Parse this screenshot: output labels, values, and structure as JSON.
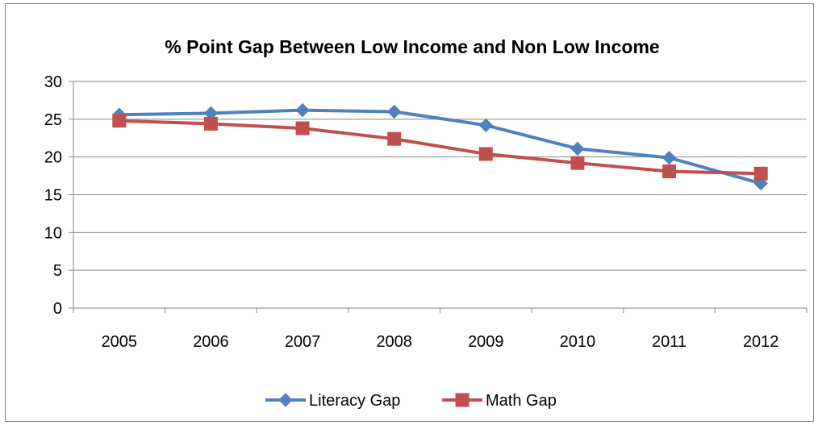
{
  "chart_data": {
    "type": "line",
    "title": "% Point Gap Between Low Income and Non Low Income",
    "xlabel": "",
    "ylabel": "",
    "categories": [
      "2005",
      "2006",
      "2007",
      "2008",
      "2009",
      "2010",
      "2011",
      "2012"
    ],
    "ylim": [
      0,
      30
    ],
    "yticks": [
      "0",
      "5",
      "10",
      "15",
      "20",
      "25",
      "30"
    ],
    "grid": true,
    "legend_position": "bottom",
    "series": [
      {
        "name": "Literacy Gap",
        "color": "#4F81BD",
        "marker": "diamond",
        "values": [
          25.6,
          25.8,
          26.2,
          26.0,
          24.2,
          21.1,
          19.9,
          16.5
        ]
      },
      {
        "name": "Math Gap",
        "color": "#C0504D",
        "marker": "square",
        "values": [
          24.8,
          24.4,
          23.8,
          22.4,
          20.4,
          19.2,
          18.1,
          17.8
        ]
      }
    ]
  }
}
